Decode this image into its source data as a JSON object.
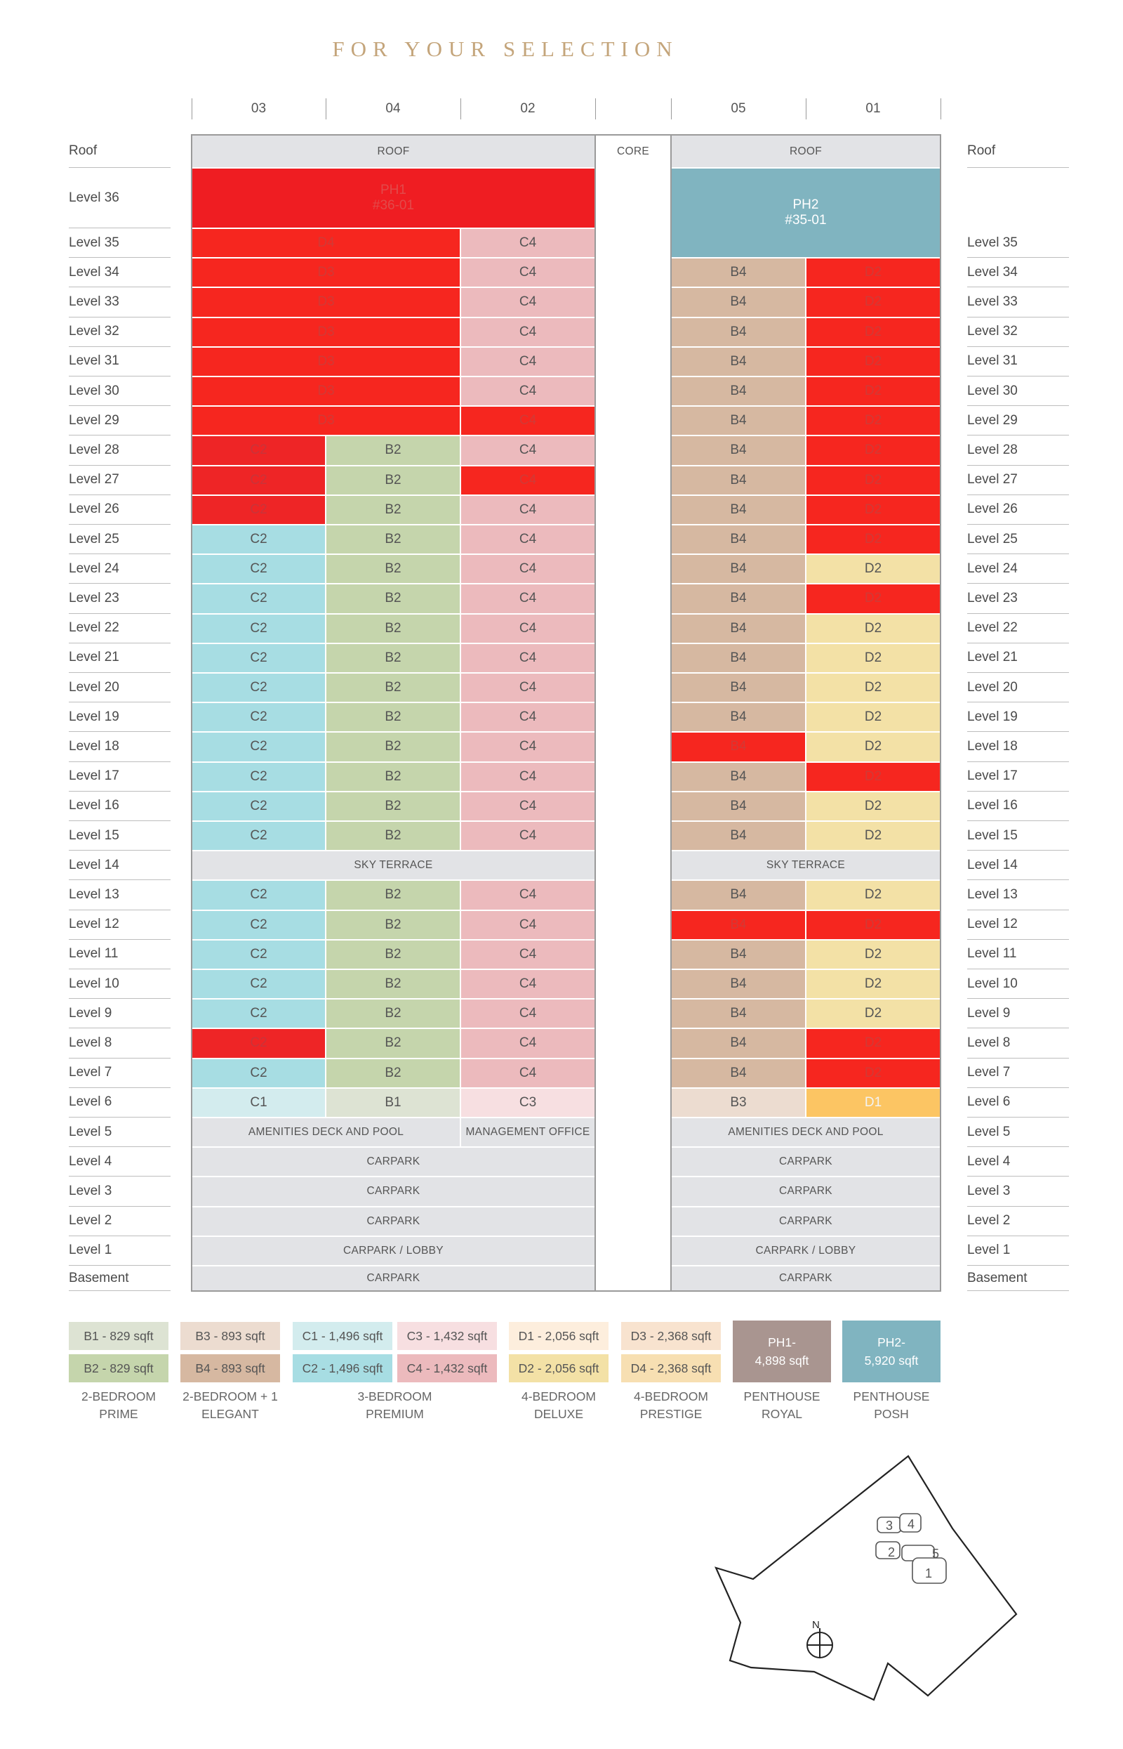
{
  "title": "FOR YOUR SELECTION",
  "colors": {
    "B1": "#dde3d3",
    "B2": "#c5d5ac",
    "B3": "#ecdcd0",
    "B4": "#d6b8a1",
    "C1": "#d3ecee",
    "C2": "#a7dde3",
    "C3": "#f7dfe1",
    "C4": "#ecbabd",
    "D1": "#fdeedd",
    "D2": "#f3e1a6",
    "D1sel": "#fcc563",
    "D3": "#f8e3cf",
    "D4": "#f7dfb2",
    "PH1": "#a99590",
    "PH2": "#80b4c0",
    "PH1sel": "#ef1d22",
    "gray": "#e2e3e6",
    "sold": "#f6261f",
    "sold2": "#ee2526"
  },
  "columns": {
    "left": [
      "03",
      "04",
      "02"
    ],
    "right": [
      "05",
      "01"
    ]
  },
  "levels": [
    "Roof",
    "Level 36",
    "Level 35",
    "Level 34",
    "Level 33",
    "Level 32",
    "Level 31",
    "Level 30",
    "Level 29",
    "Level 28",
    "Level 27",
    "Level 26",
    "Level 25",
    "Level 24",
    "Level 23",
    "Level 22",
    "Level 21",
    "Level 20",
    "Level 19",
    "Level 18",
    "Level 17",
    "Level 16",
    "Level 15",
    "Level 14",
    "Level 13",
    "Level 12",
    "Level 11",
    "Level 10",
    "Level 9",
    "Level 8",
    "Level 7",
    "Level 6",
    "Level 5",
    "Level 4",
    "Level 3",
    "Level 2",
    "Level 1",
    "Basement"
  ],
  "levels_right": [
    "Roof",
    "",
    "Level 35",
    "Level 34",
    "Level 33",
    "Level 32",
    "Level 31",
    "Level 30",
    "Level 29",
    "Level 28",
    "Level 27",
    "Level 26",
    "Level 25",
    "Level 24",
    "Level 23",
    "Level 22",
    "Level 21",
    "Level 20",
    "Level 19",
    "Level 18",
    "Level 17",
    "Level 16",
    "Level 15",
    "Level 14",
    "Level 13",
    "Level 12",
    "Level 11",
    "Level 10",
    "Level 9",
    "Level 8",
    "Level 7",
    "Level 6",
    "Level 5",
    "Level 4",
    "Level 3",
    "Level 2",
    "Level 1",
    "Basement"
  ],
  "labels": {
    "roof": "ROOF",
    "core": "CORE",
    "sky": "SKY TERRACE",
    "amenities": "AMENITIES DECK AND POOL",
    "management": "MANAGEMENT OFFICE",
    "carpark": "CARPARK",
    "carpark_lobby": "CARPARK / LOBBY",
    "ph1": "PH1\n#36-01",
    "ph2": "PH2\n#35-01"
  },
  "units": {
    "L35": [
      "D4",
      "C4"
    ],
    "L34_29": [
      "D3",
      "C4"
    ],
    "L28_26": [
      "C2",
      "B2",
      "C4"
    ],
    "L25_15": [
      "C2",
      "B2",
      "C4"
    ],
    "L13_7": [
      "C2",
      "B2",
      "C4"
    ],
    "L6": [
      "C1",
      "B1",
      "C3"
    ],
    "R34_7": [
      "B4",
      "D2"
    ],
    "R6": [
      "B3",
      "D1"
    ]
  },
  "sold": {
    "left_c4": [
      "Level 29",
      "Level 27"
    ],
    "left_c2": [
      "Level 28",
      "Level 27",
      "Level 26",
      "Level 8"
    ],
    "right_b4": [
      "Level 18",
      "Level 12"
    ],
    "right_d2_available": [
      "Level 24",
      "Level 22",
      "Level 21",
      "Level 20",
      "Level 19",
      "Level 18",
      "Level 16",
      "Level 15",
      "Level 13",
      "Level 11",
      "Level 10",
      "Level 9"
    ]
  },
  "legend": {
    "items": [
      {
        "text": "B1 - 829 sqft",
        "key": "B1"
      },
      {
        "text": "B2 - 829 sqft",
        "key": "B2"
      },
      {
        "text": "B3 - 893 sqft",
        "key": "B3"
      },
      {
        "text": "B4 - 893 sqft",
        "key": "B4"
      },
      {
        "text": "C1 - 1,496 sqft",
        "key": "C1"
      },
      {
        "text": "C2 - 1,496 sqft",
        "key": "C2"
      },
      {
        "text": "C3 - 1,432 sqft",
        "key": "C3"
      },
      {
        "text": "C4 - 1,432 sqft",
        "key": "C4"
      },
      {
        "text": "D1 - 2,056 sqft",
        "key": "D1"
      },
      {
        "text": "D2 - 2,056 sqft",
        "key": "D2"
      },
      {
        "text": "D3 - 2,368 sqft",
        "key": "D3"
      },
      {
        "text": "D4 - 2,368 sqft",
        "key": "D4"
      }
    ],
    "ph1": "PH1-\n4,898 sqft",
    "ph2": "PH2-\n5,920 sqft",
    "captions": [
      "2-BEDROOM\nPRIME",
      "2-BEDROOM + 1\nELEGANT",
      "3-BEDROOM\nPREMIUM",
      "4-BEDROOM\nDELUXE",
      "4-BEDROOM\nPRESTIGE",
      "PENTHOUSE\nROYAL",
      "PENTHOUSE\nPOSH"
    ]
  },
  "site_plan": {
    "blocks": [
      "3",
      "4",
      "2",
      "5",
      "1"
    ],
    "north": "N"
  }
}
